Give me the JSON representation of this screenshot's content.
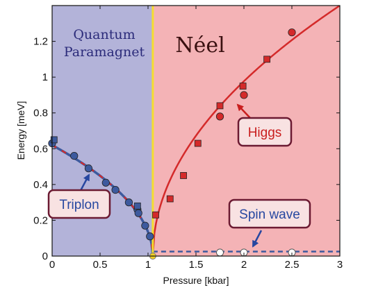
{
  "chart_data": {
    "type": "scatter",
    "xlabel": "Pressure [kbar]",
    "ylabel": "Energy [meV]",
    "xlim": [
      0,
      3
    ],
    "ylim": [
      0,
      1.4
    ],
    "xticks": [
      "0",
      "0.5",
      "1",
      "1.5",
      "2",
      "2.5",
      "3"
    ],
    "xtick_values": [
      0,
      0.5,
      1,
      1.5,
      2,
      2.5,
      3
    ],
    "yticks": [
      "0",
      "0.2",
      "0.4",
      "0.6",
      "0.8",
      "1",
      "1.2"
    ],
    "ytick_values": [
      0,
      0.2,
      0.4,
      0.6,
      0.8,
      1.0,
      1.2
    ],
    "grid": false,
    "critical_pressure": 1.05,
    "regions": [
      {
        "label_lines": [
          "Quantum",
          "Paramagnet"
        ],
        "x_range": [
          0,
          1.05
        ],
        "color": "#b3b3d9"
      },
      {
        "label_lines": [
          "Néel"
        ],
        "x_range": [
          1.05,
          3
        ],
        "color": "#f4b3b6"
      }
    ],
    "series": [
      {
        "kind": "triplon-circles",
        "color": "#3d5a9e",
        "x": [
          0.0,
          0.23,
          0.38,
          0.56,
          0.66,
          0.8,
          0.89,
          0.9,
          0.97,
          1.02
        ],
        "y": [
          0.63,
          0.56,
          0.49,
          0.41,
          0.37,
          0.3,
          0.26,
          0.24,
          0.17,
          0.11
        ]
      },
      {
        "kind": "triplon-squares",
        "color": "#3d5a9e",
        "x": [
          0.02,
          0.89
        ],
        "y": [
          0.65,
          0.28
        ]
      },
      {
        "kind": "higgs-squares",
        "color": "#d42a2a",
        "x": [
          1.08,
          1.23,
          1.37,
          1.52,
          1.75,
          1.99,
          2.24
        ],
        "y": [
          0.23,
          0.32,
          0.45,
          0.63,
          0.84,
          0.95,
          1.1
        ]
      },
      {
        "kind": "higgs-circles",
        "color": "#d42a2a",
        "x": [
          1.75,
          2.0,
          2.5
        ],
        "y": [
          0.78,
          0.9,
          1.25
        ]
      },
      {
        "kind": "spin-wave-open-circles",
        "color": "#ffffff",
        "x": [
          1.75,
          2.0,
          2.5
        ],
        "y": [
          0.02,
          0.02,
          0.02
        ]
      },
      {
        "kind": "critical-point",
        "color": "#f2d024",
        "x": [
          1.05
        ],
        "y": [
          0.0
        ]
      }
    ],
    "curves": [
      {
        "kind": "triplon-fit",
        "color": "#3d5a9e",
        "dash_color": "#d42a2a",
        "style": "blue solid with red dashes",
        "x_range": [
          0,
          1.05
        ],
        "y0": 0.62
      },
      {
        "kind": "higgs-fit",
        "color": "#d42a2a",
        "style": "solid",
        "x_range": [
          1.05,
          3
        ]
      },
      {
        "kind": "spin-wave",
        "color": "#3d5a9e",
        "style": "dashed",
        "x_range": [
          1.05,
          3
        ],
        "y": 0.025
      }
    ],
    "annotations": [
      {
        "text": "Triplon",
        "text_color": "#2747a0",
        "fill": "#f8e2e2",
        "border": "#6b1a32"
      },
      {
        "text": "Higgs",
        "text_color": "#c91e1e",
        "fill": "#f8e2e2",
        "border": "#6b1a32"
      },
      {
        "text": "Spin wave",
        "text_color": "#2747a0",
        "fill": "#f8e2e2",
        "border": "#6b1a32"
      }
    ],
    "critical_line_color": "#f5de2e"
  }
}
